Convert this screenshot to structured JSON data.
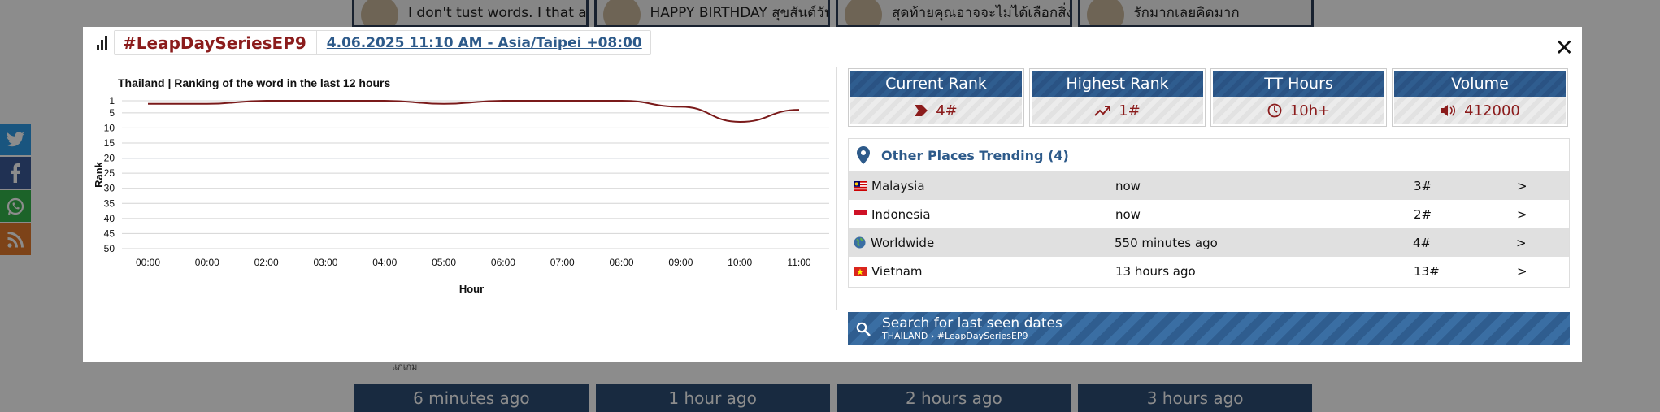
{
  "background": {
    "cards": [
      {
        "text": "I don't tust words. I that actions."
      },
      {
        "text": "HAPPY BIRTHDAY สุขสันต์วันเกิด"
      },
      {
        "text": "สุดท้ายคุณอาจจะไม่ได้เลือกสิ่งที่ดี"
      },
      {
        "text": "รักมากเลยคิดมาก"
      }
    ],
    "small_text": "แก่เกม",
    "bottom_buttons": [
      "6 minutes ago",
      "1 hour ago",
      "2 hours ago",
      "3 hours ago"
    ],
    "social": [
      "twitter-icon",
      "facebook-icon",
      "whatsapp-icon",
      "rss-icon"
    ]
  },
  "modal": {
    "hashtag": "#LeapDaySeriesEP9",
    "datetime": "4.06.2025 11:10 AM - Asia/Taipei +08:00",
    "close": "✕"
  },
  "chart_data": {
    "type": "line",
    "title": "Thailand | Ranking of the word in the last 12 hours",
    "xlabel": "Hour",
    "ylabel": "Rank",
    "categories": [
      "00:00",
      "00:00",
      "02:00",
      "03:00",
      "04:00",
      "05:00",
      "06:00",
      "07:00",
      "08:00",
      "09:00",
      "10:00",
      "11:00"
    ],
    "y_ticks": [
      1,
      5,
      10,
      15,
      20,
      25,
      30,
      35,
      40,
      45,
      50
    ],
    "ylim": [
      1,
      50
    ],
    "y_inverted": true,
    "series": [
      {
        "values": [
          2,
          2,
          1,
          1,
          1,
          2,
          1,
          1,
          1,
          3,
          8,
          4
        ],
        "color": "#7a1a1a"
      }
    ],
    "grid": true,
    "highlight_gridline": 20
  },
  "stats": [
    {
      "label": "Current Rank",
      "value": "4#",
      "icon": "chevron-right-icon"
    },
    {
      "label": "Highest Rank",
      "value": "1#",
      "icon": "trend-up-icon"
    },
    {
      "label": "TT Hours",
      "value": "10h+",
      "icon": "clock-icon"
    },
    {
      "label": "Volume",
      "value": "412000",
      "icon": "speaker-icon"
    }
  ],
  "places": {
    "title": "Other Places Trending (4)",
    "rows": [
      {
        "name": "Malaysia",
        "time": "now",
        "rank": "3#",
        "go": ">",
        "flag": "malaysia-flag-icon"
      },
      {
        "name": "Indonesia",
        "time": "now",
        "rank": "2#",
        "go": ">",
        "flag": "indonesia-flag-icon"
      },
      {
        "name": "Worldwide",
        "time": "550 minutes ago",
        "rank": "4#",
        "go": ">",
        "flag": "globe-icon"
      },
      {
        "name": "Vietnam",
        "time": "13 hours ago",
        "rank": "13#",
        "go": ">",
        "flag": "vietnam-flag-icon"
      }
    ]
  },
  "search": {
    "title": "Search for last seen dates",
    "subtitle": "THAILAND › #LeapDaySeriesEP9"
  }
}
